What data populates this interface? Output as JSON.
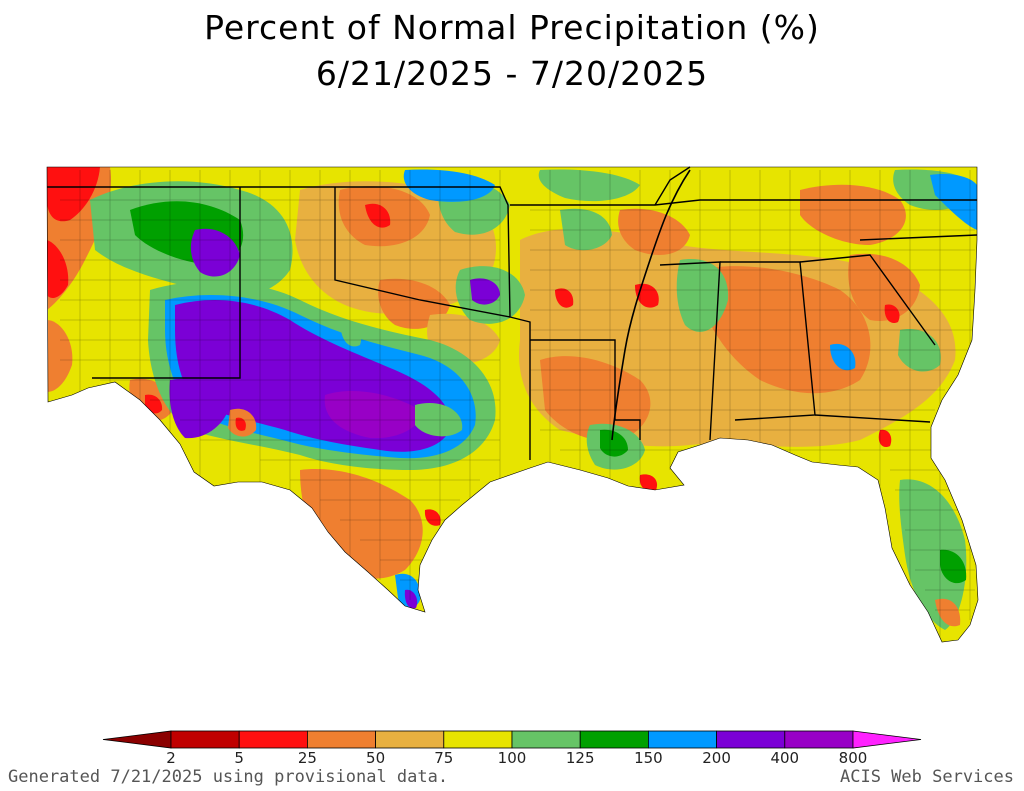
{
  "title": "Percent of Normal Precipitation (%)",
  "date_range": "6/21/2025 - 7/20/2025",
  "legend": {
    "colors": [
      "#8b0000",
      "#c00000",
      "#ff1010",
      "#ef7f30",
      "#e8b040",
      "#e7e400",
      "#66c466",
      "#00a000",
      "#0099ff",
      "#7b00d6",
      "#9800c6",
      "#ff22ff"
    ],
    "labels": [
      "2",
      "5",
      "25",
      "50",
      "75",
      "100",
      "125",
      "150",
      "200",
      "400",
      "800"
    ]
  },
  "map": {
    "region": "Southern United States",
    "colors": {
      "red": "#ff1010",
      "orange": "#ef7f30",
      "amber": "#e8b040",
      "yellow": "#e7e400",
      "lightgreen": "#66c466",
      "green": "#00a000",
      "blue": "#0099ff",
      "purple": "#7b00d6",
      "darkred": "#c00000"
    }
  },
  "footer": {
    "left": "Generated 7/21/2025 using provisional data.",
    "right": "ACIS Web Services"
  }
}
